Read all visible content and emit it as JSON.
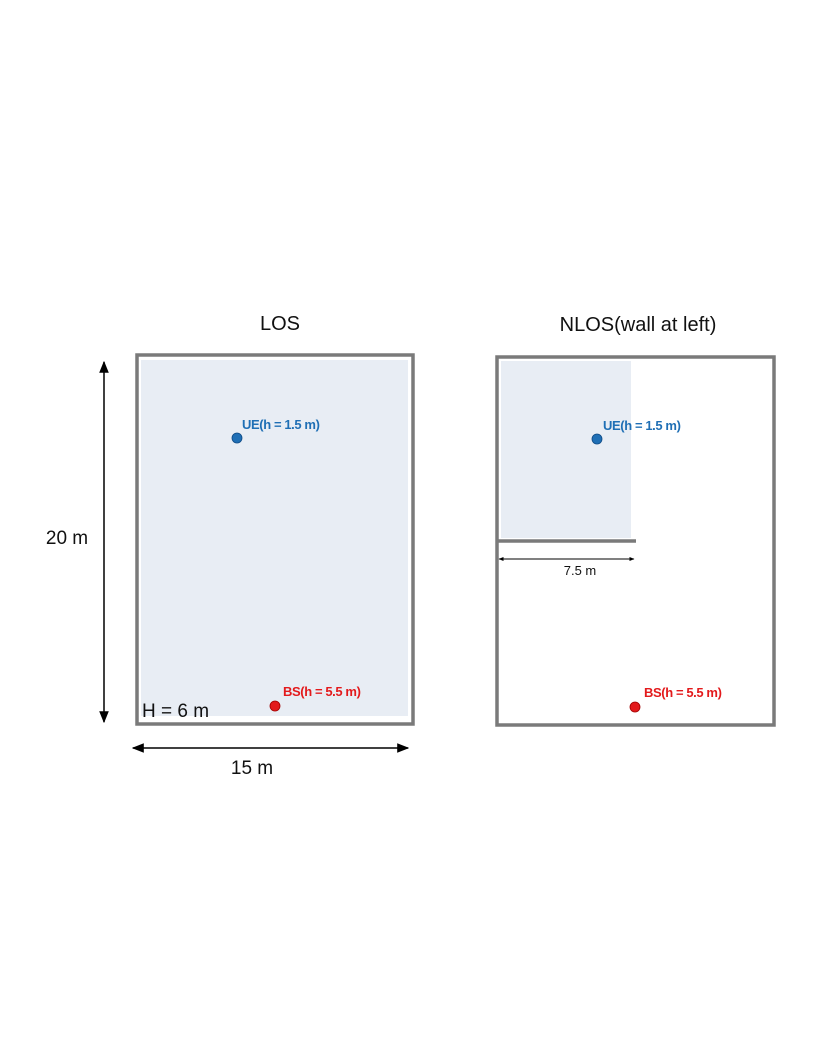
{
  "colors": {
    "wall": "#7a7a7a",
    "los_region": "#e8edf4",
    "ue": "#1f6fb5",
    "bs": "#e31a1c",
    "dimension": "#000000"
  },
  "panels": [
    {
      "title": "LOS",
      "ue_label": "UE(h = 1.5 m)",
      "bs_label": "BS(h = 5.5 m)",
      "height_label": "H = 6 m"
    },
    {
      "title": "NLOS(wall at left)",
      "ue_label": "UE(h = 1.5 m)",
      "bs_label": "BS(h = 5.5 m)",
      "wall_length_label": "7.5 m"
    }
  ],
  "dimensions": {
    "room_length": "20 m",
    "room_width": "15 m"
  }
}
